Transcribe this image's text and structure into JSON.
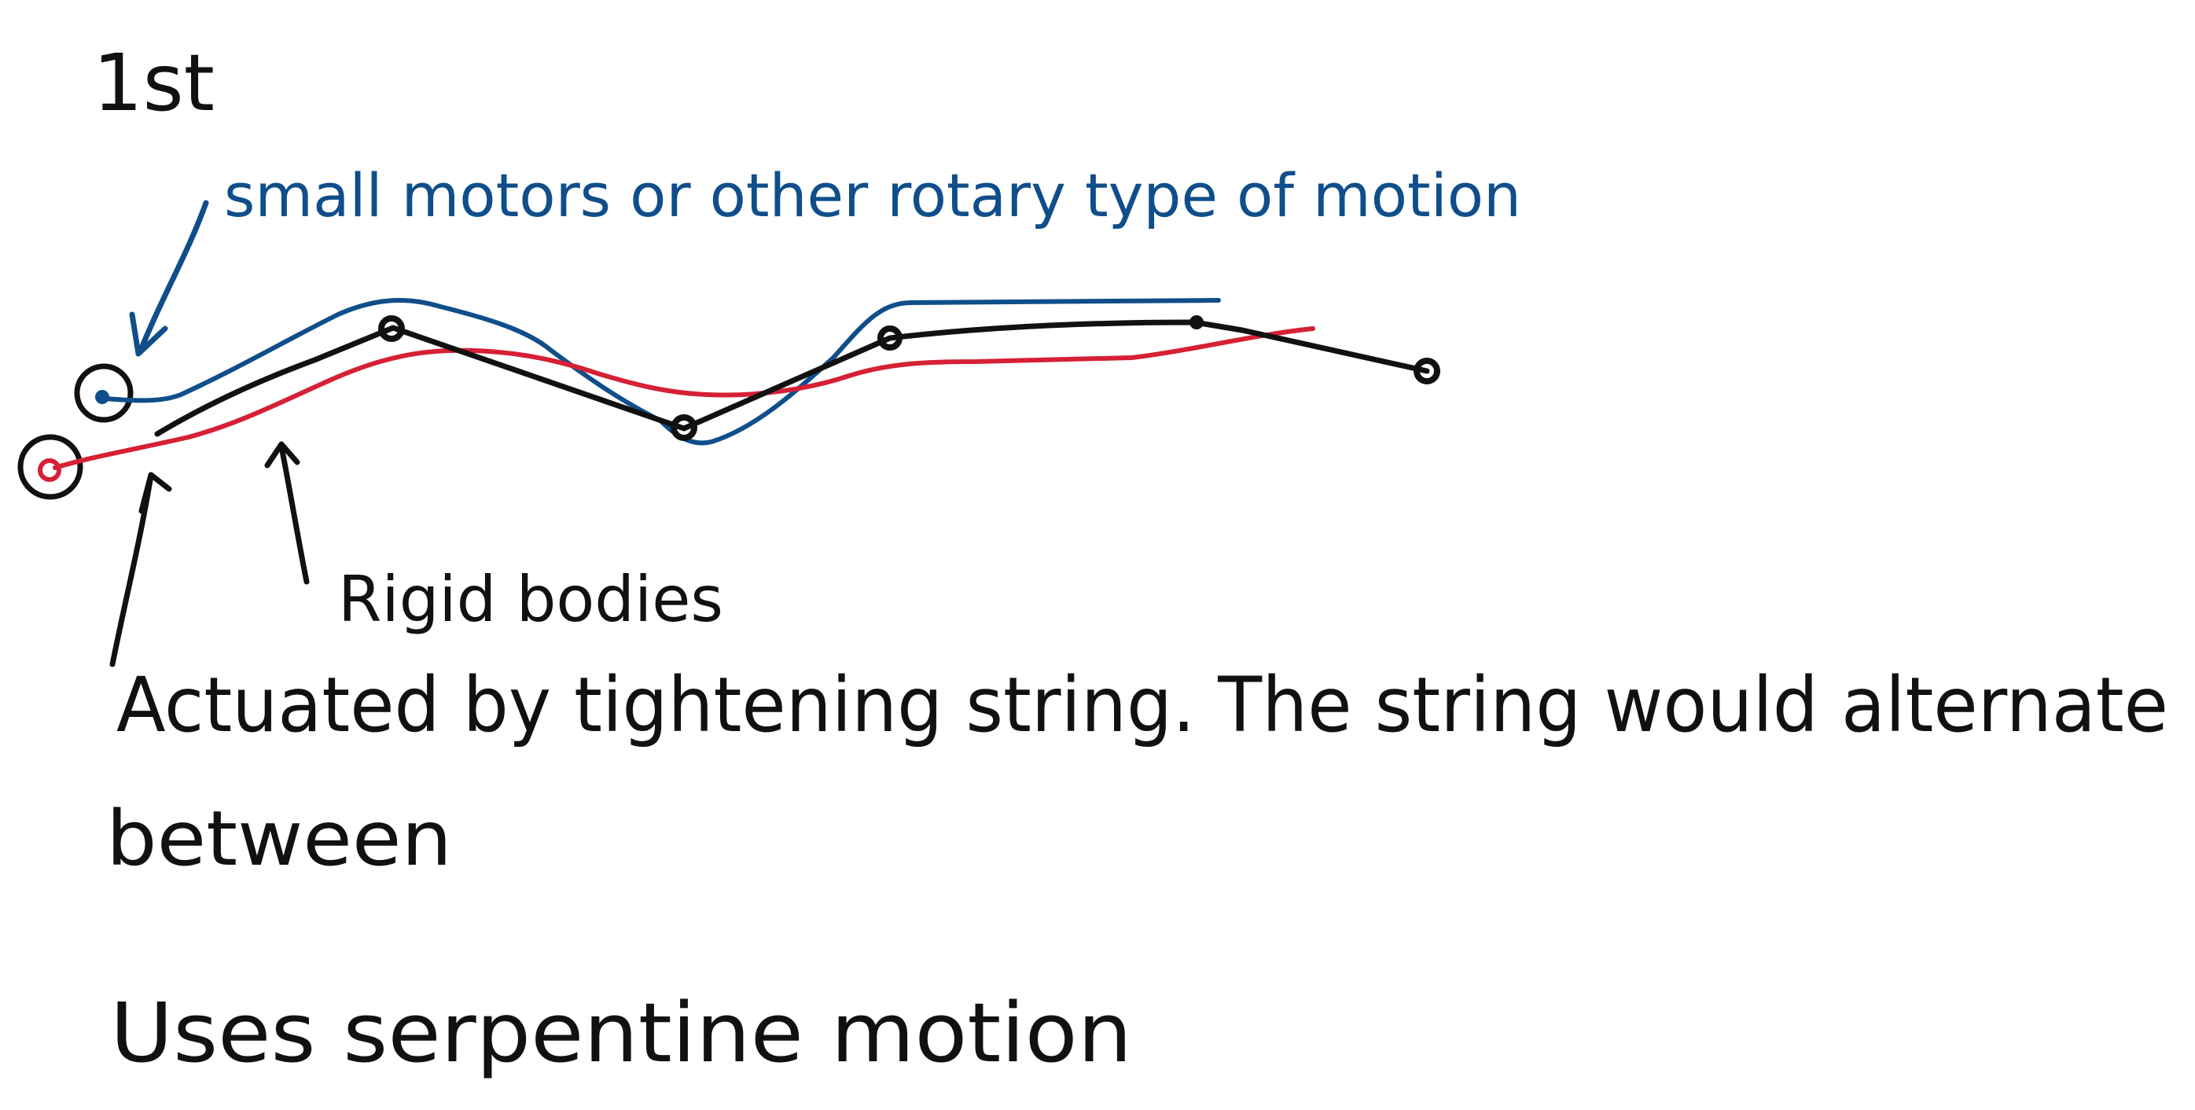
{
  "notes": {
    "heading": "1st",
    "motor_note": "small motors or other rotary type of motion",
    "rigid_note": "Rigid bodies",
    "actuated_line1": "Actuated by tightening string. The string would alternate",
    "actuated_line2": "between",
    "motion_note": "Uses serpentine motion"
  },
  "colors": {
    "black_ink": "#111111",
    "blue_ink": "#0f4e8a",
    "red_ink": "#d62035",
    "background": "#ffffff"
  }
}
